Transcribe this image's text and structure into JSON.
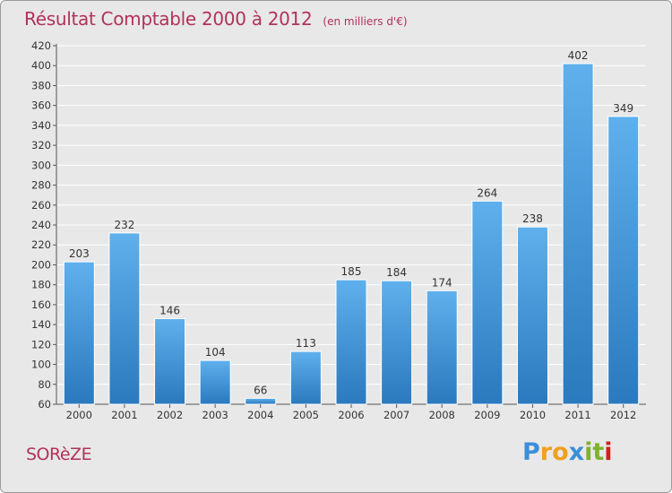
{
  "header": {
    "title": "Résultat Comptable 2000 à 2012",
    "subtitle": "(en milliers d'€)"
  },
  "footer": {
    "place": "SORèZE",
    "brand_letters": [
      "P",
      "r",
      "o",
      "x",
      "i",
      "t",
      "i"
    ],
    "brand_colors": [
      "#3b8fd8",
      "#f0a020",
      "#f0a020",
      "#3b8fd8",
      "#80b030",
      "#80b030",
      "#d02020"
    ]
  },
  "colors": {
    "title": "#b1325a",
    "bar_top": "#5fb0ec",
    "bar_bottom": "#2b79be",
    "background": "#e8e8e8",
    "grid": "#ffffff"
  },
  "chart_data": {
    "type": "bar",
    "categories": [
      "2000",
      "2001",
      "2002",
      "2003",
      "2004",
      "2005",
      "2006",
      "2007",
      "2008",
      "2009",
      "2010",
      "2011",
      "2012"
    ],
    "values": [
      203,
      232,
      146,
      104,
      66,
      113,
      185,
      184,
      174,
      264,
      238,
      402,
      349
    ],
    "yticks": [
      60,
      80,
      100,
      120,
      140,
      160,
      180,
      200,
      220,
      240,
      260,
      280,
      300,
      320,
      340,
      360,
      380,
      400,
      420
    ],
    "ylim": [
      60,
      420
    ],
    "grid": true,
    "legend": "none"
  }
}
